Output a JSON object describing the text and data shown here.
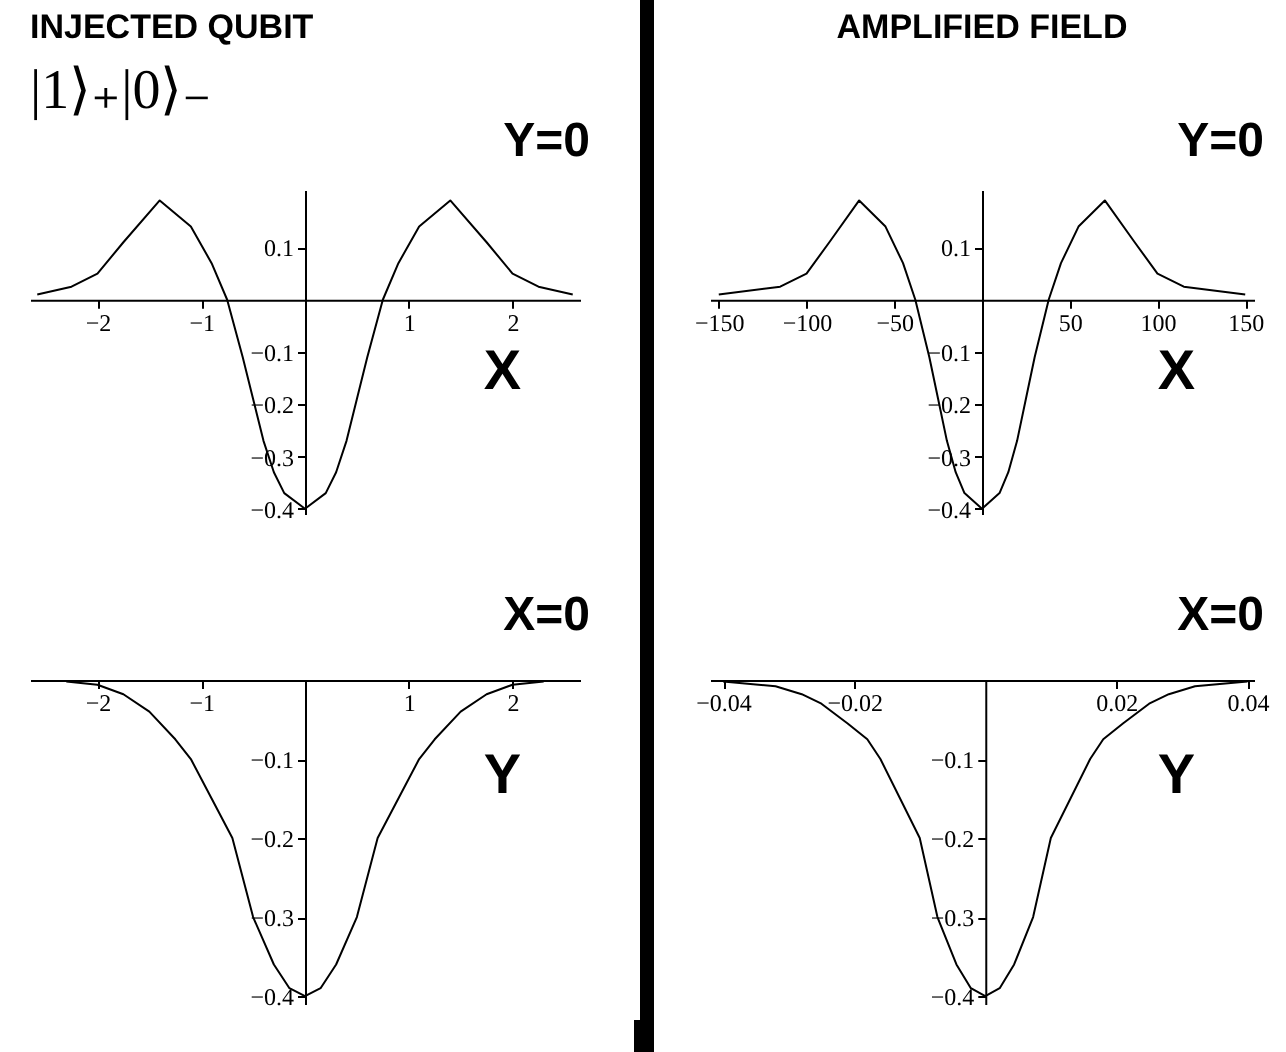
{
  "chart_data": [
    {
      "type": "line",
      "title": "INJECTED QUBIT",
      "subtitle": "|1⟩₊|0⟩₋",
      "xlabel": "X",
      "annotations": [
        "Y=0"
      ],
      "color": "#000000",
      "x": [
        -2.58,
        -2.25,
        -2,
        -1.75,
        -1.4,
        -1.1,
        -0.9,
        -0.75,
        -0.6,
        -0.5,
        -0.4,
        -0.3,
        -0.2,
        0,
        0.2,
        0.3,
        0.4,
        0.5,
        0.6,
        0.75,
        0.9,
        1.1,
        1.4,
        1.75,
        2,
        2.25,
        2.58
      ],
      "values": [
        0.01,
        0.025,
        0.05,
        0.11,
        0.19,
        0.14,
        0.07,
        0,
        -0.11,
        -0.19,
        -0.27,
        -0.33,
        -0.37,
        -0.4,
        -0.37,
        -0.33,
        -0.27,
        -0.19,
        -0.11,
        0,
        0.07,
        0.14,
        0.19,
        0.11,
        0.05,
        0.025,
        0.01
      ],
      "xlim": [
        -2.65,
        2.65
      ],
      "ylim": [
        -0.41,
        0.21
      ],
      "xticks": [
        -2,
        -1,
        1,
        2
      ],
      "yticks": [
        0.1,
        -0.1,
        -0.2,
        -0.3,
        -0.4
      ]
    },
    {
      "type": "line",
      "title": "AMPLIFIED FIELD",
      "xlabel": "X",
      "annotations": [
        "Y=0"
      ],
      "color": "#000000",
      "x": [
        -150,
        -115,
        -100,
        -87,
        -70,
        -55,
        -45,
        -38,
        -30,
        -25,
        -20,
        -15,
        -10,
        0,
        10,
        15,
        20,
        25,
        30,
        38,
        45,
        55,
        70,
        87,
        100,
        115,
        150
      ],
      "values": [
        0.01,
        0.025,
        0.05,
        0.11,
        0.19,
        0.14,
        0.07,
        0,
        -0.11,
        -0.19,
        -0.27,
        -0.33,
        -0.37,
        -0.4,
        -0.37,
        -0.33,
        -0.27,
        -0.19,
        -0.11,
        0,
        0.07,
        0.14,
        0.19,
        0.11,
        0.05,
        0.025,
        0.01
      ],
      "xlim": [
        -155,
        155
      ],
      "ylim": [
        -0.41,
        0.21
      ],
      "xticks": [
        -150,
        -100,
        -50,
        50,
        100,
        150
      ],
      "yticks": [
        0.1,
        -0.1,
        -0.2,
        -0.3,
        -0.4
      ]
    },
    {
      "type": "line",
      "xlabel": "Y",
      "annotations": [
        "X=0"
      ],
      "color": "#000000",
      "x": [
        -2.3,
        -2,
        -1.75,
        -1.5,
        -1.25,
        -1.1,
        -0.9,
        -0.7,
        -0.5,
        -0.3,
        -0.15,
        0,
        0.15,
        0.3,
        0.5,
        0.7,
        0.9,
        1.1,
        1.25,
        1.5,
        1.75,
        2,
        2.3
      ],
      "values": [
        -0.002,
        -0.006,
        -0.018,
        -0.04,
        -0.075,
        -0.1,
        -0.15,
        -0.2,
        -0.3,
        -0.36,
        -0.39,
        -0.4,
        -0.39,
        -0.36,
        -0.3,
        -0.2,
        -0.15,
        -0.1,
        -0.075,
        -0.04,
        -0.018,
        -0.006,
        -0.002
      ],
      "xlim": [
        -2.65,
        2.65
      ],
      "ylim": [
        -0.41,
        0
      ],
      "xticks": [
        -2,
        -1,
        1,
        2
      ],
      "yticks": [
        -0.1,
        -0.2,
        -0.3,
        -0.4
      ]
    },
    {
      "type": "line",
      "xlabel": "Y",
      "annotations": [
        "X=0"
      ],
      "color": "#000000",
      "x": [
        -0.04,
        -0.032,
        -0.028,
        -0.025,
        -0.021,
        -0.018,
        -0.016,
        -0.013,
        -0.01,
        -0.0073,
        -0.0044,
        -0.0022,
        0,
        0.0022,
        0.0044,
        0.0073,
        0.01,
        0.013,
        0.016,
        0.018,
        0.021,
        0.025,
        0.028,
        0.032,
        0.04
      ],
      "values": [
        -0.002,
        -0.008,
        -0.018,
        -0.03,
        -0.055,
        -0.075,
        -0.1,
        -0.15,
        -0.2,
        -0.3,
        -0.36,
        -0.39,
        -0.4,
        -0.39,
        -0.36,
        -0.3,
        -0.2,
        -0.15,
        -0.1,
        -0.075,
        -0.055,
        -0.03,
        -0.018,
        -0.008,
        -0.002
      ],
      "xlim": [
        -0.042,
        0.041
      ],
      "ylim": [
        -0.41,
        0
      ],
      "xticks": [
        -0.04,
        -0.02,
        0.02,
        0.04
      ],
      "yticks": [
        -0.1,
        -0.2,
        -0.3,
        -0.4
      ]
    }
  ]
}
